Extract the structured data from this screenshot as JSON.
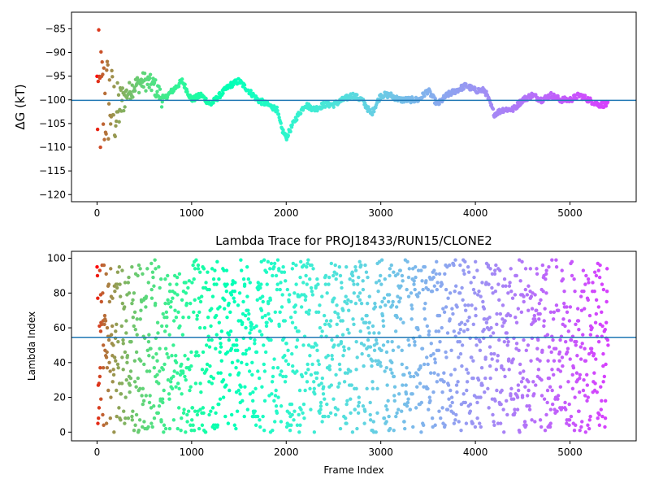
{
  "chart_data": [
    {
      "type": "scatter",
      "title": "",
      "xlabel": "",
      "ylabel": "ΔG (kT)",
      "xlim": [
        -270,
        5700
      ],
      "ylim": [
        -121.5,
        -81.5
      ],
      "x_ticks": [
        0,
        1000,
        2000,
        3000,
        4000,
        5000
      ],
      "y_ticks": [
        -120,
        -115,
        -110,
        -105,
        -100,
        -95,
        -90,
        -85
      ],
      "hline": -100.1,
      "hline_color": "#1f77b4",
      "colormap": "rainbow (red at frame 0 → violet at late frames)",
      "trace_approx": {
        "x": [
          0,
          60,
          120,
          200,
          300,
          400,
          500,
          600,
          700,
          800,
          900,
          1000,
          1100,
          1200,
          1300,
          1400,
          1500,
          1600,
          1700,
          1800,
          1900,
          1950,
          2000,
          2100,
          2200,
          2300,
          2400,
          2500,
          2600,
          2700,
          2800,
          2900,
          3000,
          3100,
          3200,
          3300,
          3400,
          3500,
          3600,
          3700,
          3800,
          3900,
          4000,
          4100,
          4200,
          4300,
          4400,
          4500,
          4600,
          4700,
          4800,
          4900,
          5000,
          5100,
          5200,
          5300,
          5400
        ],
        "y": [
          -100,
          -101,
          -100,
          -103,
          -99,
          -97,
          -96,
          -97,
          -100,
          -98,
          -96,
          -100,
          -99,
          -101,
          -99,
          -97,
          -96,
          -98,
          -100,
          -101,
          -102,
          -106,
          -108,
          -104,
          -101,
          -102,
          -101,
          -101,
          -100,
          -99,
          -100,
          -103,
          -99,
          -99,
          -100,
          -100,
          -100,
          -98,
          -101,
          -99,
          -98,
          -97,
          -98,
          -98,
          -103,
          -102,
          -102,
          -100,
          -99,
          -100,
          -99,
          -100,
          -100,
          -99,
          -100,
          -101,
          -101
        ]
      }
    },
    {
      "type": "scatter",
      "title": "Lambda Trace for PROJ18433/RUN15/CLONE2",
      "xlabel": "Frame Index",
      "ylabel": "Lambda Index",
      "xlim": [
        -270,
        5700
      ],
      "ylim": [
        -5,
        104
      ],
      "x_ticks": [
        0,
        1000,
        2000,
        3000,
        4000,
        5000
      ],
      "y_ticks": [
        0,
        20,
        40,
        60,
        80,
        100
      ],
      "hline": 54.5,
      "hline_color": "#1f77b4",
      "colormap": "rainbow (red at frame 0 → violet at late frames)",
      "point_distribution": "lambda index spread over 0–100 for frames 0–5400"
    }
  ]
}
